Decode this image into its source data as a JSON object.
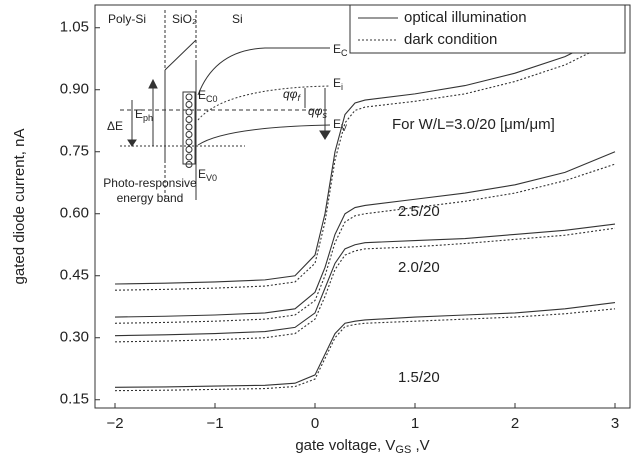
{
  "chart_data": {
    "type": "line",
    "xlabel": {
      "main": "gate voltage, V",
      "sub": "GS",
      "tail": " ,V"
    },
    "ylabel": "gated diode current, nA",
    "x": [
      -2,
      -1.5,
      -1,
      -0.5,
      -0.2,
      0,
      0.1,
      0.2,
      0.3,
      0.4,
      0.5,
      1,
      1.5,
      2,
      2.5,
      3
    ],
    "series": [
      {
        "name": "For W/L=3.0/20 [μm/μm]",
        "values": [
          0.43,
          0.432,
          0.435,
          0.44,
          0.45,
          0.5,
          0.6,
          0.75,
          0.84,
          0.868,
          0.875,
          0.89,
          0.91,
          0.94,
          0.98,
          1.04
        ],
        "dark_values": [
          0.415,
          0.417,
          0.42,
          0.425,
          0.435,
          0.48,
          0.58,
          0.73,
          0.82,
          0.85,
          0.858,
          0.872,
          0.89,
          0.92,
          0.96,
          1.02
        ]
      },
      {
        "name": "2.5/20",
        "values": [
          0.35,
          0.352,
          0.355,
          0.36,
          0.37,
          0.41,
          0.47,
          0.55,
          0.6,
          0.615,
          0.62,
          0.635,
          0.65,
          0.67,
          0.7,
          0.75
        ],
        "dark_values": [
          0.335,
          0.337,
          0.34,
          0.345,
          0.355,
          0.39,
          0.45,
          0.53,
          0.58,
          0.595,
          0.6,
          0.615,
          0.63,
          0.65,
          0.68,
          0.72
        ]
      },
      {
        "name": "2.0/20",
        "values": [
          0.305,
          0.307,
          0.31,
          0.315,
          0.325,
          0.36,
          0.42,
          0.48,
          0.515,
          0.525,
          0.53,
          0.535,
          0.54,
          0.55,
          0.56,
          0.575
        ],
        "dark_values": [
          0.29,
          0.292,
          0.295,
          0.3,
          0.31,
          0.345,
          0.4,
          0.465,
          0.5,
          0.51,
          0.515,
          0.52,
          0.528,
          0.538,
          0.548,
          0.565
        ]
      },
      {
        "name": "1.5/20",
        "values": [
          0.18,
          0.181,
          0.183,
          0.185,
          0.19,
          0.21,
          0.26,
          0.31,
          0.335,
          0.34,
          0.343,
          0.35,
          0.355,
          0.36,
          0.37,
          0.385
        ],
        "dark_values": [
          0.172,
          0.173,
          0.175,
          0.177,
          0.182,
          0.2,
          0.25,
          0.3,
          0.327,
          0.332,
          0.335,
          0.34,
          0.345,
          0.35,
          0.358,
          0.37
        ]
      }
    ],
    "legend": [
      {
        "name": "optical illumination",
        "style": "solid"
      },
      {
        "name": "dark condition",
        "style": "dotted"
      }
    ],
    "color": "#333333",
    "xlim": [
      -2.2,
      3.15
    ],
    "xticks": [
      {
        "value": -2,
        "label": "−2"
      },
      {
        "value": -1,
        "label": "−1"
      },
      0,
      1,
      2,
      3
    ],
    "ylim": [
      0.13,
      1.105
    ],
    "yticks": [
      0.15,
      {
        "value": 0.3,
        "label": "0.30"
      },
      0.45,
      {
        "value": 0.6,
        "label": "0.60"
      },
      0.75,
      {
        "value": 0.9,
        "label": "0.90"
      },
      1.05
    ],
    "inset": {
      "regions": [
        "Poly-Si",
        "SiO₂",
        "Si"
      ],
      "EC": {
        "main": "E",
        "sub": "C"
      },
      "EC0": {
        "main": "E",
        "sub": "C0"
      },
      "Ei": {
        "main": "E",
        "sub": "i"
      },
      "EV": {
        "main": "E",
        "sub": "V"
      },
      "EV0": {
        "main": "E",
        "sub": "V0"
      },
      "qphif": {
        "main": "qφ",
        "sub": "f"
      },
      "qphis": {
        "main": "qφ",
        "sub": "s"
      },
      "dE": "ΔE",
      "Eph": {
        "main": "E",
        "sub": "ph"
      },
      "note": [
        "Photo-responsive",
        "energy band"
      ]
    }
  }
}
